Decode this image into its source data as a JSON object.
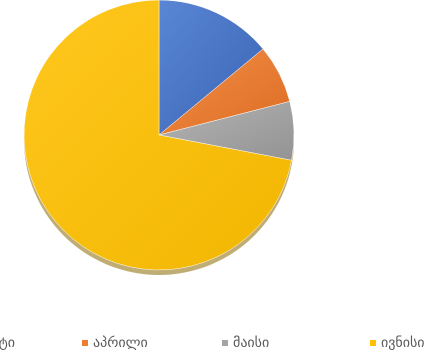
{
  "chart_data": {
    "type": "pie",
    "title": "",
    "categories": [
      "მარტი",
      "აპრილი",
      "მაისი",
      "ივნისი"
    ],
    "values": [
      14,
      7,
      7,
      72
    ],
    "colors": [
      "#4472c4",
      "#ed7d31",
      "#a5a5a5",
      "#ffc000"
    ],
    "start_angle_deg": 0,
    "direction": "clockwise",
    "legend_position": "bottom",
    "style": "3d-shadow"
  }
}
